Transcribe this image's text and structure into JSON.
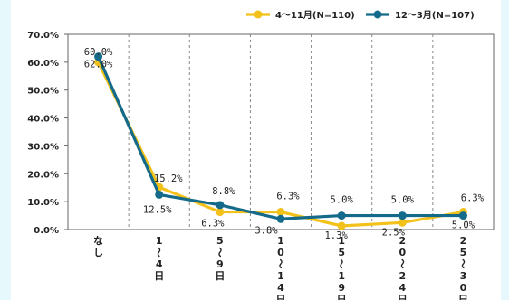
{
  "chart_data": {
    "type": "line",
    "categories": [
      "なし",
      "1〜4日",
      "5〜9日",
      "10〜14日",
      "15〜19日",
      "20〜24日",
      "25〜30日"
    ],
    "category_glyphs": [
      [
        "な",
        "し"
      ],
      [
        "1",
        "〜",
        "4",
        "日"
      ],
      [
        "5",
        "〜",
        "9",
        "日"
      ],
      [
        "1",
        "0",
        "〜",
        "1",
        "4",
        "日"
      ],
      [
        "1",
        "5",
        "〜",
        "1",
        "9",
        "日"
      ],
      [
        "2",
        "0",
        "〜",
        "2",
        "4",
        "日"
      ],
      [
        "2",
        "5",
        "〜",
        "3",
        "0",
        "日"
      ]
    ],
    "series": [
      {
        "name": "4〜11月(N=110)",
        "color": "#f2c21a",
        "values": [
          60.0,
          15.2,
          6.3,
          6.3,
          1.3,
          2.5,
          6.3
        ],
        "labels": [
          "60.0%",
          "15.2%",
          "6.3%",
          "6.3%",
          "1.3%",
          "2.5%",
          "6.3%"
        ]
      },
      {
        "name": "12〜3月(N=107)",
        "color": "#136a8a",
        "values": [
          62.0,
          12.5,
          8.8,
          3.8,
          5.0,
          5.0,
          5.0
        ],
        "labels": [
          "62.0%",
          "12.5%",
          "8.8%",
          "3.8%",
          "5.0%",
          "5.0%",
          "5.0%"
        ]
      }
    ],
    "ylim": [
      0,
      70
    ],
    "yticks": [
      "0.0%",
      "10.0%",
      "20.0%",
      "30.0%",
      "40.0%",
      "50.0%",
      "60.0%",
      "70.0%"
    ],
    "grid": "vertical dashed separators",
    "legend": "top-right",
    "xlabel": "",
    "ylabel": ""
  }
}
